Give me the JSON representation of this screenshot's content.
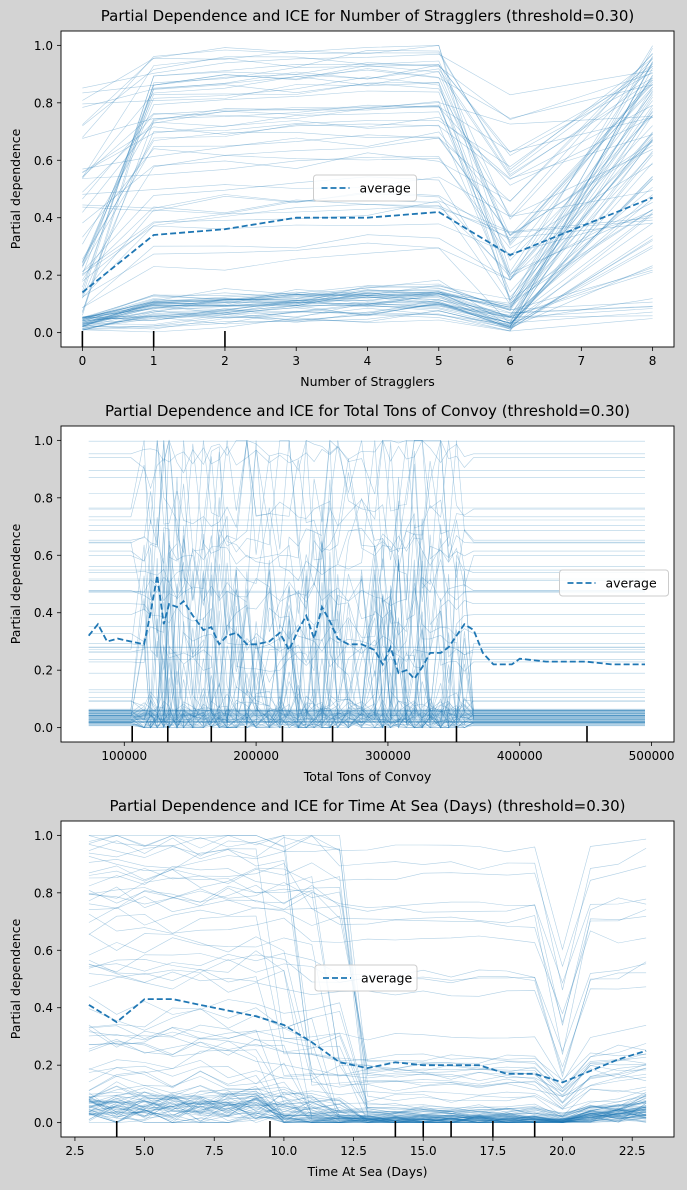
{
  "chart_data": [
    {
      "type": "line",
      "title": "Partial Dependence and ICE for Number of Stragglers (threshold=0.30)",
      "xlabel": "Number of Stragglers",
      "ylabel": "Partial dependence",
      "xlim": [
        -0.3,
        8.3
      ],
      "ylim": [
        -0.05,
        1.05
      ],
      "xticks": [
        0,
        1,
        2,
        3,
        4,
        5,
        6,
        7,
        8
      ],
      "xtick_labels": [
        "0",
        "1",
        "2",
        "3",
        "4",
        "5",
        "6",
        "7",
        "8"
      ],
      "yticks": [
        0.0,
        0.2,
        0.4,
        0.6,
        0.8,
        1.0
      ],
      "ytick_labels": [
        "0.0",
        "0.2",
        "0.4",
        "0.6",
        "0.8",
        "1.0"
      ],
      "legend": {
        "position": "center",
        "entries": [
          "average"
        ]
      },
      "x": [
        0,
        1,
        2,
        3,
        4,
        5,
        6,
        7,
        8
      ],
      "series": [
        {
          "name": "average",
          "style": "dashed",
          "color": "#1f77b4",
          "values": [
            0.14,
            0.34,
            0.36,
            0.4,
            0.4,
            0.42,
            0.27,
            0.37,
            0.47
          ]
        }
      ],
      "ice_count": 100,
      "ice_color": "#1f77b4",
      "rug": [
        0,
        1,
        2
      ]
    },
    {
      "type": "line",
      "title": "Partial Dependence and ICE for Total Tons of Convoy (threshold=0.30)",
      "xlabel": "Total Tons of Convoy",
      "ylabel": "Partial dependence",
      "xlim": [
        52000,
        517000
      ],
      "ylim": [
        -0.05,
        1.05
      ],
      "xticks": [
        100000,
        200000,
        300000,
        400000,
        500000
      ],
      "xtick_labels": [
        "100000",
        "200000",
        "300000",
        "400000",
        "500000"
      ],
      "yticks": [
        0.0,
        0.2,
        0.4,
        0.6,
        0.8,
        1.0
      ],
      "ytick_labels": [
        "0.0",
        "0.2",
        "0.4",
        "0.6",
        "0.8",
        "1.0"
      ],
      "legend": {
        "position": "center-right",
        "entries": [
          "average"
        ]
      },
      "x": [
        73000,
        80000,
        87000,
        95000,
        105000,
        115000,
        120000,
        125000,
        130000,
        134000,
        140000,
        145000,
        152000,
        160000,
        166000,
        172000,
        178000,
        185000,
        193000,
        200000,
        210000,
        218000,
        225000,
        232000,
        238000,
        244000,
        250000,
        256000,
        262000,
        270000,
        280000,
        290000,
        296000,
        302000,
        308000,
        314000,
        320000,
        326000,
        332000,
        340000,
        346000,
        352000,
        358000,
        365000,
        372000,
        380000,
        388000,
        394000,
        400000,
        420000,
        440000,
        450000,
        470000,
        495000
      ],
      "series": [
        {
          "name": "average",
          "style": "dashed",
          "color": "#1f77b4",
          "values": [
            0.32,
            0.36,
            0.3,
            0.31,
            0.3,
            0.29,
            0.4,
            0.53,
            0.36,
            0.43,
            0.42,
            0.44,
            0.39,
            0.34,
            0.35,
            0.29,
            0.32,
            0.33,
            0.29,
            0.29,
            0.3,
            0.33,
            0.27,
            0.34,
            0.39,
            0.31,
            0.42,
            0.37,
            0.31,
            0.29,
            0.29,
            0.27,
            0.22,
            0.28,
            0.19,
            0.2,
            0.17,
            0.21,
            0.26,
            0.26,
            0.28,
            0.32,
            0.36,
            0.34,
            0.26,
            0.22,
            0.22,
            0.22,
            0.24,
            0.23,
            0.23,
            0.23,
            0.22,
            0.22
          ]
        }
      ],
      "ice_count": 100,
      "ice_color": "#1f77b4",
      "rug": [
        106000,
        133000,
        166000,
        192000,
        220000,
        258000,
        298000,
        352000,
        451000
      ]
    },
    {
      "type": "line",
      "title": "Partial Dependence and ICE for Time At Sea (Days) (threshold=0.30)",
      "xlabel": "Time At Sea (Days)",
      "ylabel": "Partial dependence",
      "xlim": [
        2.0,
        24.0
      ],
      "ylim": [
        -0.05,
        1.05
      ],
      "xticks": [
        2.5,
        5.0,
        7.5,
        10.0,
        12.5,
        15.0,
        17.5,
        20.0,
        22.5
      ],
      "xtick_labels": [
        "2.5",
        "5.0",
        "7.5",
        "10.0",
        "12.5",
        "15.0",
        "17.5",
        "20.0",
        "22.5"
      ],
      "yticks": [
        0.0,
        0.2,
        0.4,
        0.6,
        0.8,
        1.0
      ],
      "ytick_labels": [
        "0.0",
        "0.2",
        "0.4",
        "0.6",
        "0.8",
        "1.0"
      ],
      "legend": {
        "position": "center",
        "entries": [
          "average"
        ]
      },
      "x": [
        3,
        4,
        5,
        6,
        7,
        8,
        9,
        10,
        11,
        12,
        13,
        14,
        15,
        16,
        17,
        18,
        19,
        20,
        21,
        22,
        23
      ],
      "series": [
        {
          "name": "average",
          "style": "dashed",
          "color": "#1f77b4",
          "values": [
            0.41,
            0.35,
            0.43,
            0.43,
            0.41,
            0.39,
            0.37,
            0.34,
            0.28,
            0.21,
            0.19,
            0.21,
            0.2,
            0.2,
            0.2,
            0.17,
            0.17,
            0.14,
            0.18,
            0.22,
            0.25
          ]
        }
      ],
      "ice_count": 100,
      "ice_color": "#1f77b4",
      "rug": [
        4,
        9.5,
        14,
        15,
        16,
        17.5,
        19
      ]
    }
  ]
}
